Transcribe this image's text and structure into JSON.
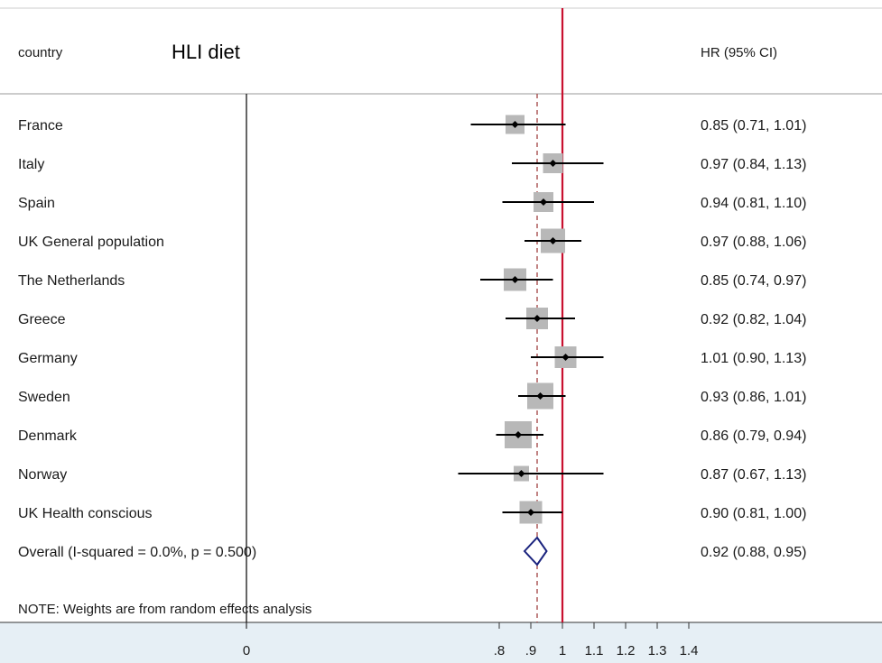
{
  "header": {
    "country_label": "country",
    "title": "HLI diet",
    "estimate_label": "HR (95% CI)"
  },
  "footnote": "NOTE: Weights are from random effects analysis",
  "colors": {
    "null_line": "#c8102e",
    "overall_line": "#a04040",
    "weight_box": "#b8b8b8",
    "overall_diamond": "#1a237e",
    "axis_band": "#e6eff5"
  },
  "chart_data": {
    "type": "forest",
    "xaxis": {
      "ticks": [
        0,
        0.8,
        0.9,
        1,
        1.1,
        1.2,
        1.3,
        1.4
      ],
      "tick_labels": [
        "0",
        ".8",
        ".9",
        "1",
        "1.1",
        "1.2",
        "1.3",
        "1.4"
      ],
      "null_value": 1
    },
    "studies": [
      {
        "label": "France",
        "hr": 0.85,
        "lo": 0.71,
        "hi": 1.01,
        "text": "0.85 (0.71, 1.01)",
        "weight": 0.45
      },
      {
        "label": "Italy",
        "hr": 0.97,
        "lo": 0.84,
        "hi": 1.13,
        "text": "0.97 (0.84, 1.13)",
        "weight": 0.5
      },
      {
        "label": "Spain",
        "hr": 0.94,
        "lo": 0.81,
        "hi": 1.1,
        "text": "0.94 (0.81, 1.10)",
        "weight": 0.5
      },
      {
        "label": "UK General population",
        "hr": 0.97,
        "lo": 0.88,
        "hi": 1.06,
        "text": "0.97 (0.88, 1.06)",
        "weight": 0.75
      },
      {
        "label": "The Netherlands",
        "hr": 0.85,
        "lo": 0.74,
        "hi": 0.97,
        "text": "0.85 (0.74, 0.97)",
        "weight": 0.65
      },
      {
        "label": "Greece",
        "hr": 0.92,
        "lo": 0.82,
        "hi": 1.04,
        "text": "0.92 (0.82, 1.04)",
        "weight": 0.6
      },
      {
        "label": "Germany",
        "hr": 1.01,
        "lo": 0.9,
        "hi": 1.13,
        "text": "1.01 (0.90, 1.13)",
        "weight": 0.6
      },
      {
        "label": "Sweden",
        "hr": 0.93,
        "lo": 0.86,
        "hi": 1.01,
        "text": "0.93 (0.86, 1.01)",
        "weight": 0.85
      },
      {
        "label": "Denmark",
        "hr": 0.86,
        "lo": 0.79,
        "hi": 0.94,
        "text": "0.86 (0.79, 0.94)",
        "weight": 0.9
      },
      {
        "label": "Norway",
        "hr": 0.87,
        "lo": 0.67,
        "hi": 1.13,
        "text": "0.87 (0.67, 1.13)",
        "weight": 0.25
      },
      {
        "label": "UK Health conscious",
        "hr": 0.9,
        "lo": 0.81,
        "hi": 1.0,
        "text": "0.90 (0.81, 1.00)",
        "weight": 0.65
      }
    ],
    "overall": {
      "label": "Overall  (I-squared = 0.0%, p = 0.500)",
      "hr": 0.92,
      "lo": 0.88,
      "hi": 0.95,
      "text": "0.92 (0.88, 0.95)"
    }
  }
}
